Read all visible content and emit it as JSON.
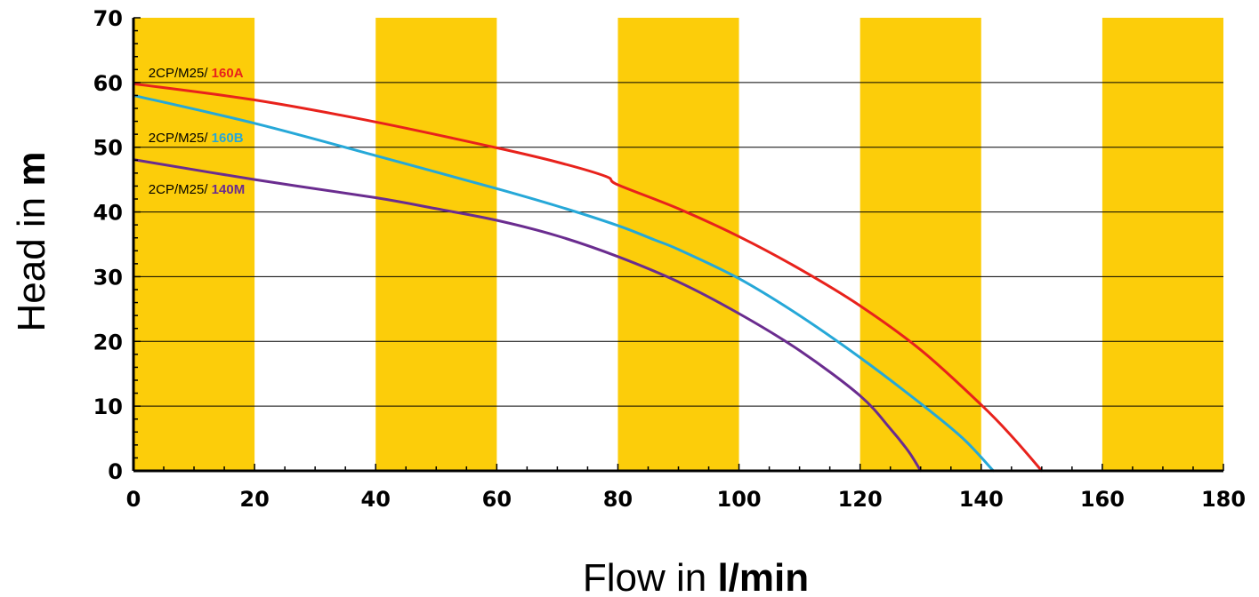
{
  "chart_data": {
    "type": "line",
    "xlabel": {
      "prefix": "Flow in ",
      "unit": "l/min"
    },
    "ylabel": {
      "prefix": "Head in ",
      "unit": "m"
    },
    "xlim": [
      0,
      180
    ],
    "ylim": [
      0,
      70
    ],
    "x_ticks": [
      0,
      20,
      40,
      60,
      80,
      100,
      120,
      140,
      160,
      180
    ],
    "y_ticks": [
      0,
      10,
      20,
      30,
      40,
      50,
      60,
      70
    ],
    "y_gridlines": [
      10,
      20,
      30,
      40,
      50,
      60
    ],
    "band_color": "#fccd0a",
    "yellow_bands": [
      [
        0,
        20
      ],
      [
        40,
        60
      ],
      [
        80,
        100
      ],
      [
        120,
        140
      ],
      [
        160,
        180
      ]
    ],
    "series": [
      {
        "name": "160A",
        "label_prefix": "2CP/M25/ ",
        "label_anchor": [
          1,
          61.5
        ],
        "color": "#e8221c",
        "points": [
          [
            0,
            59.8
          ],
          [
            20,
            57.3
          ],
          [
            40,
            53.9
          ],
          [
            60,
            49.9
          ],
          [
            70,
            47.7
          ],
          [
            78,
            45.5
          ],
          [
            80,
            44.2
          ],
          [
            90,
            40.5
          ],
          [
            100,
            36.2
          ],
          [
            110,
            31.2
          ],
          [
            120,
            25.5
          ],
          [
            130,
            18.7
          ],
          [
            140,
            10.2
          ],
          [
            145,
            5.4
          ],
          [
            150,
            0
          ]
        ]
      },
      {
        "name": "160B",
        "label_prefix": "2CP/M25/ ",
        "label_anchor": [
          1,
          51.5
        ],
        "color": "#26a8d8",
        "points": [
          [
            0,
            58
          ],
          [
            20,
            53.7
          ],
          [
            40,
            48.7
          ],
          [
            60,
            43.6
          ],
          [
            70,
            40.9
          ],
          [
            80,
            37.9
          ],
          [
            86,
            35.7
          ],
          [
            90,
            34.2
          ],
          [
            100,
            29.7
          ],
          [
            110,
            24
          ],
          [
            120,
            17.5
          ],
          [
            130,
            10.4
          ],
          [
            137,
            5
          ],
          [
            142,
            0
          ]
        ]
      },
      {
        "name": "140M",
        "label_prefix": "2CP/M25/ ",
        "label_anchor": [
          1,
          43.5
        ],
        "color": "#6a2c8f",
        "points": [
          [
            0,
            48.1
          ],
          [
            20,
            45
          ],
          [
            40,
            42.2
          ],
          [
            50,
            40.5
          ],
          [
            60,
            38.7
          ],
          [
            70,
            36.3
          ],
          [
            80,
            33.1
          ],
          [
            90,
            29.2
          ],
          [
            100,
            24.3
          ],
          [
            110,
            18.6
          ],
          [
            120,
            11.6
          ],
          [
            125,
            6.5
          ],
          [
            128,
            3
          ],
          [
            130,
            0
          ]
        ]
      }
    ]
  }
}
